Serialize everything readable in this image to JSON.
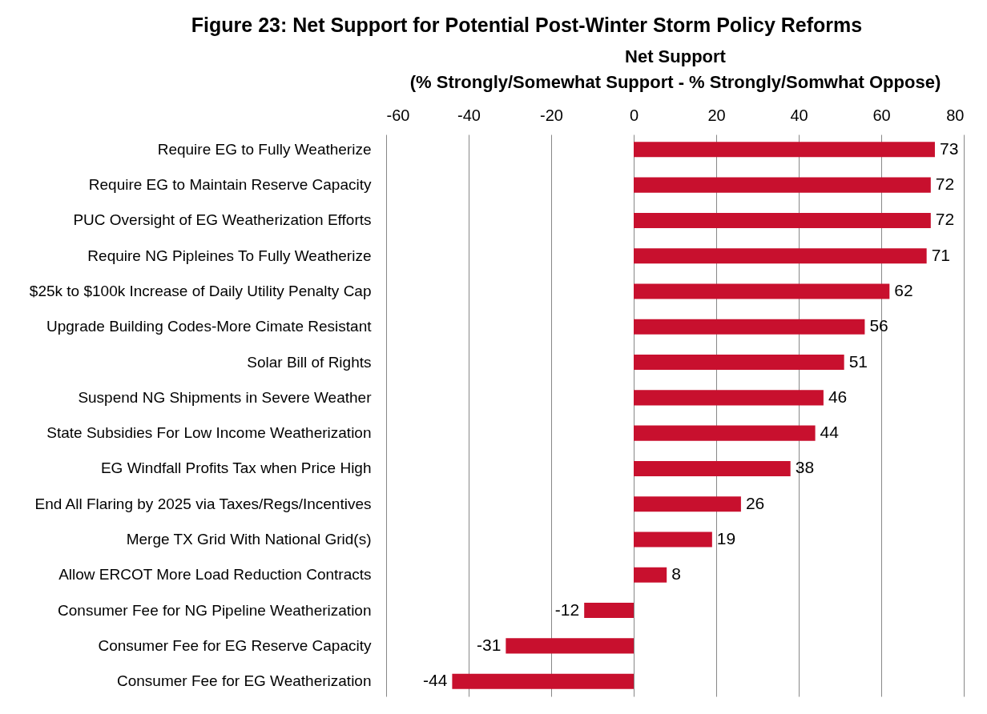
{
  "chart_data": {
    "type": "bar",
    "orientation": "horizontal",
    "title": "Figure 23: Net Support for Potential Post-Winter Storm Policy Reforms",
    "xlabel": "Net Support\n(% Strongly/Somewhat Support - % Strongly/Somwhat Oppose)",
    "categories": [
      "Require EG to Fully Weatherize",
      "Require EG to Maintain Reserve Capacity",
      "PUC Oversight of EG Weatherization Efforts",
      "Require NG Pipleines To Fully Weatherize",
      "$25k to $100k Increase of Daily Utility Penalty Cap",
      "Upgrade Building Codes-More Cimate Resistant",
      "Solar Bill of Rights",
      "Suspend NG Shipments in Severe Weather",
      "State Subsidies For Low Income Weatherization",
      "EG Windfall Profits Tax when Price High",
      "End All Flaring by 2025 via Taxes/Regs/Incentives",
      "Merge TX Grid With National Grid(s)",
      "Allow ERCOT More Load Reduction Contracts",
      "Consumer Fee for NG Pipeline Weatherization ",
      "Consumer Fee for EG Reserve Capacity",
      "Consumer Fee for EG Weatherization"
    ],
    "values": [
      73,
      72,
      72,
      71,
      62,
      56,
      51,
      46,
      44,
      38,
      26,
      19,
      8,
      -12,
      -31,
      -44
    ],
    "color": "#c8102e",
    "xlim": [
      -60,
      80
    ],
    "xticks": [
      -60,
      -40,
      -20,
      0,
      20,
      40,
      60,
      80
    ],
    "grid": "x",
    "data_labels": true
  }
}
